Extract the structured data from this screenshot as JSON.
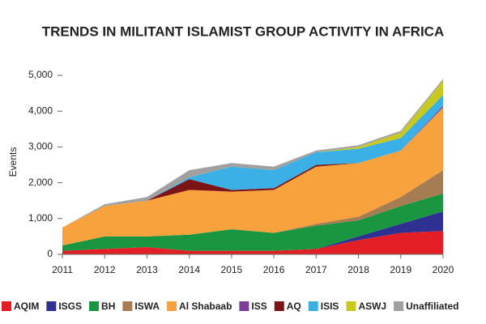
{
  "chart_data": {
    "type": "stacked_area",
    "title": "TRENDS IN MILITANT ISLAMIST GROUP ACTIVITY IN AFRICA",
    "y_label": "Events",
    "x": [
      2011,
      2012,
      2013,
      2014,
      2015,
      2016,
      2017,
      2018,
      2019,
      2020
    ],
    "xlim": [
      2011,
      2020
    ],
    "xticks": [
      2011,
      2012,
      2013,
      2014,
      2015,
      2016,
      2017,
      2018,
      2019,
      2020
    ],
    "ylim": [
      0,
      5000
    ],
    "yticks": [
      0,
      {
        "value": 1000,
        "label": "1,000"
      },
      {
        "value": 2000,
        "label": "2,000"
      },
      {
        "value": 3000,
        "label": "3,000"
      },
      {
        "value": 4000,
        "label": "4,000"
      },
      {
        "value": 5000,
        "label": "5,000"
      }
    ],
    "legend": "bottom",
    "series": [
      {
        "name": "AQIM",
        "color": "#e31e24",
        "values": [
          100,
          150,
          200,
          100,
          100,
          100,
          150,
          400,
          600,
          650
        ]
      },
      {
        "name": "ISGS",
        "color": "#2e3192",
        "values": [
          0,
          0,
          0,
          0,
          0,
          0,
          0,
          100,
          250,
          550
        ]
      },
      {
        "name": "BH",
        "color": "#1a9641",
        "values": [
          150,
          350,
          300,
          450,
          600,
          500,
          650,
          450,
          500,
          500
        ]
      },
      {
        "name": "ISWA",
        "color": "#a67c52",
        "values": [
          0,
          0,
          0,
          0,
          0,
          0,
          50,
          100,
          250,
          650
        ]
      },
      {
        "name": "Al Shabaab",
        "color": "#f7a23c",
        "values": [
          500,
          850,
          1000,
          1250,
          1050,
          1200,
          1600,
          1500,
          1300,
          1750
        ]
      },
      {
        "name": "ISS",
        "color": "#7b3f98",
        "values": [
          0,
          0,
          0,
          0,
          0,
          0,
          0,
          0,
          0,
          50
        ]
      },
      {
        "name": "AQ",
        "color": "#7a1416",
        "values": [
          0,
          0,
          0,
          300,
          50,
          50,
          50,
          0,
          0,
          0
        ]
      },
      {
        "name": "ISIS",
        "color": "#3ab0e6",
        "values": [
          0,
          0,
          0,
          50,
          650,
          500,
          350,
          400,
          350,
          300
        ]
      },
      {
        "name": "ASWJ",
        "color": "#c8c81e",
        "values": [
          0,
          0,
          0,
          0,
          0,
          0,
          0,
          50,
          150,
          400
        ]
      },
      {
        "name": "Unaffiliated",
        "color": "#a0a0a0",
        "values": [
          0,
          50,
          100,
          200,
          100,
          100,
          50,
          50,
          50,
          50
        ]
      }
    ]
  }
}
